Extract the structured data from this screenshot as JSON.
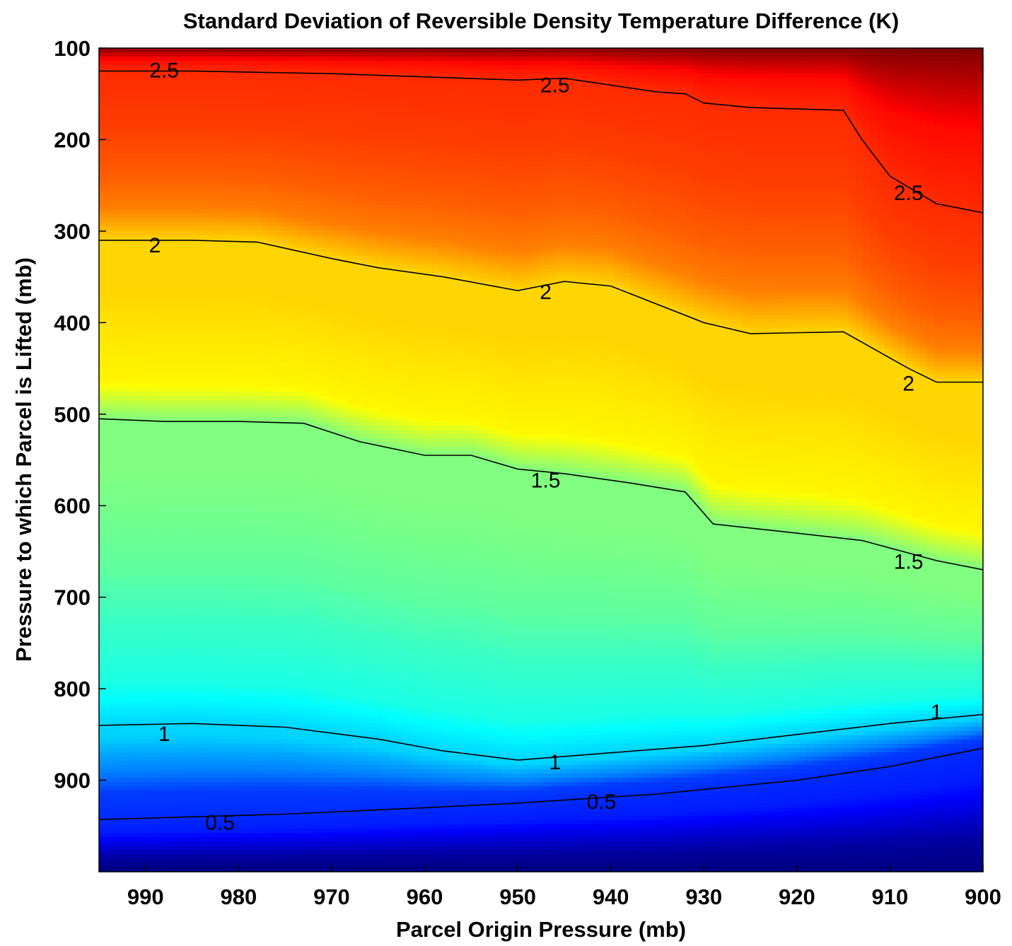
{
  "chart_data": {
    "type": "heatmap",
    "subtype": "filled-contour",
    "title": "Standard Deviation of Reversible Density Temperature Difference (K)",
    "xlabel": "Parcel Origin Pressure (mb)",
    "ylabel": "Pressure to which Parcel is Lifted (mb)",
    "xlim": [
      995,
      900
    ],
    "ylim": [
      100,
      1000
    ],
    "x_reversed": true,
    "y_reversed": true,
    "xticks": [
      990,
      980,
      970,
      960,
      950,
      940,
      930,
      920,
      910,
      900
    ],
    "yticks": [
      100,
      200,
      300,
      400,
      500,
      600,
      700,
      800,
      900
    ],
    "xtick_labels": [
      "990",
      "980",
      "970",
      "960",
      "950",
      "940",
      "930",
      "920",
      "910",
      "900"
    ],
    "ytick_labels": [
      "100",
      "200",
      "300",
      "400",
      "500",
      "600",
      "700",
      "800",
      "900"
    ],
    "colormap": "jet",
    "value_range": [
      0,
      3
    ],
    "grid": false,
    "legend": "none",
    "contour_lines": [
      {
        "level": 2.5,
        "points": [
          [
            995,
            125
          ],
          [
            985,
            125
          ],
          [
            970,
            128
          ],
          [
            950,
            135
          ],
          [
            945,
            133
          ],
          [
            935,
            148
          ],
          [
            932,
            150
          ],
          [
            930,
            160
          ],
          [
            925,
            165
          ],
          [
            915,
            168
          ],
          [
            913,
            200
          ],
          [
            910,
            240
          ],
          [
            905,
            270
          ],
          [
            900,
            280
          ]
        ]
      },
      {
        "level": 2.0,
        "points": [
          [
            995,
            310
          ],
          [
            985,
            310
          ],
          [
            978,
            312
          ],
          [
            970,
            330
          ],
          [
            965,
            340
          ],
          [
            958,
            350
          ],
          [
            950,
            365
          ],
          [
            945,
            355
          ],
          [
            940,
            360
          ],
          [
            930,
            400
          ],
          [
            925,
            412
          ],
          [
            915,
            410
          ],
          [
            908,
            450
          ],
          [
            905,
            465
          ],
          [
            900,
            465
          ]
        ]
      },
      {
        "level": 1.5,
        "points": [
          [
            995,
            505
          ],
          [
            988,
            508
          ],
          [
            980,
            508
          ],
          [
            973,
            510
          ],
          [
            967,
            530
          ],
          [
            960,
            545
          ],
          [
            955,
            545
          ],
          [
            950,
            560
          ],
          [
            945,
            565
          ],
          [
            938,
            575
          ],
          [
            932,
            585
          ],
          [
            929,
            620
          ],
          [
            920,
            630
          ],
          [
            913,
            638
          ],
          [
            905,
            660
          ],
          [
            900,
            670
          ]
        ]
      },
      {
        "level": 1.0,
        "points": [
          [
            995,
            840
          ],
          [
            985,
            838
          ],
          [
            975,
            842
          ],
          [
            965,
            855
          ],
          [
            958,
            868
          ],
          [
            950,
            878
          ],
          [
            940,
            870
          ],
          [
            930,
            862
          ],
          [
            920,
            850
          ],
          [
            910,
            838
          ],
          [
            900,
            828
          ]
        ]
      },
      {
        "level": 0.5,
        "points": [
          [
            995,
            943
          ],
          [
            985,
            940
          ],
          [
            975,
            937
          ],
          [
            960,
            930
          ],
          [
            950,
            925
          ],
          [
            935,
            915
          ],
          [
            920,
            900
          ],
          [
            910,
            885
          ],
          [
            900,
            865
          ]
        ]
      }
    ],
    "contour_labels": [
      {
        "text": "2.5",
        "x": 988,
        "y": 126
      },
      {
        "text": "2.5",
        "x": 946,
        "y": 142
      },
      {
        "text": "2.5",
        "x": 908,
        "y": 260
      },
      {
        "text": "2",
        "x": 989,
        "y": 317
      },
      {
        "text": "2",
        "x": 947,
        "y": 368
      },
      {
        "text": "2",
        "x": 908,
        "y": 468
      },
      {
        "text": "1.5",
        "x": 947,
        "y": 574
      },
      {
        "text": "1.5",
        "x": 908,
        "y": 663
      },
      {
        "text": "1",
        "x": 988,
        "y": 851
      },
      {
        "text": "1",
        "x": 946,
        "y": 882
      },
      {
        "text": "1",
        "x": 905,
        "y": 827
      },
      {
        "text": "0.5",
        "x": 982,
        "y": 948
      },
      {
        "text": "0.5",
        "x": 941,
        "y": 925
      }
    ],
    "field_profile": {
      "levels": [
        100,
        125,
        150,
        200,
        250,
        280,
        310,
        365,
        410,
        465,
        505,
        560,
        620,
        670,
        720,
        790,
        835,
        845,
        865,
        880,
        900,
        925,
        945,
        980,
        1000
      ],
      "values": [
        3.0,
        2.6,
        2.5,
        2.45,
        2.35,
        2.25,
        2.0,
        2.0,
        1.95,
        1.9,
        1.5,
        1.5,
        1.45,
        1.4,
        1.3,
        1.2,
        1.0,
        1.0,
        0.85,
        0.75,
        0.55,
        0.5,
        0.45,
        0.1,
        0.0
      ]
    }
  }
}
